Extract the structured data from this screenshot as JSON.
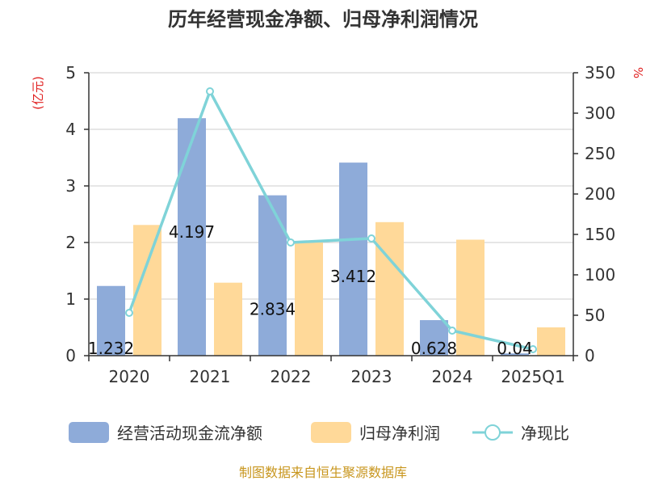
{
  "chart_data": {
    "type": "bar",
    "title": "历年经营现金净额、归母净利润情况",
    "categories": [
      "2020",
      "2021",
      "2022",
      "2023",
      "2024",
      "2025Q1"
    ],
    "left_axis": {
      "unit": "(亿元)",
      "ylim": [
        0,
        5
      ],
      "ticks": [
        "0",
        "1",
        "2",
        "3",
        "4",
        "5"
      ]
    },
    "right_axis": {
      "unit": "%",
      "ylim": [
        0,
        350
      ],
      "ticks": [
        "0",
        "50",
        "100",
        "150",
        "200",
        "250",
        "300",
        "350"
      ]
    },
    "series": [
      {
        "name": "经营活动现金流净额",
        "type": "bar",
        "axis": "left",
        "color": "#8eabd9",
        "values": [
          1.232,
          4.197,
          2.834,
          3.412,
          0.628,
          0.04
        ],
        "labels": [
          "1.232",
          "4.197",
          "2.834",
          "3.412",
          "0.628",
          "0.04"
        ]
      },
      {
        "name": "归母净利润",
        "type": "bar",
        "axis": "left",
        "color": "#ffd999",
        "values": [
          2.31,
          1.29,
          2.0,
          2.36,
          2.05,
          0.5
        ]
      },
      {
        "name": "净现比",
        "type": "line",
        "axis": "right",
        "color": "#7fd3d8",
        "values": [
          53,
          327,
          140,
          145,
          31,
          8
        ]
      }
    ],
    "grid": true,
    "legend": "bottom"
  },
  "source_text": "制图数据来自恒生聚源数据库"
}
